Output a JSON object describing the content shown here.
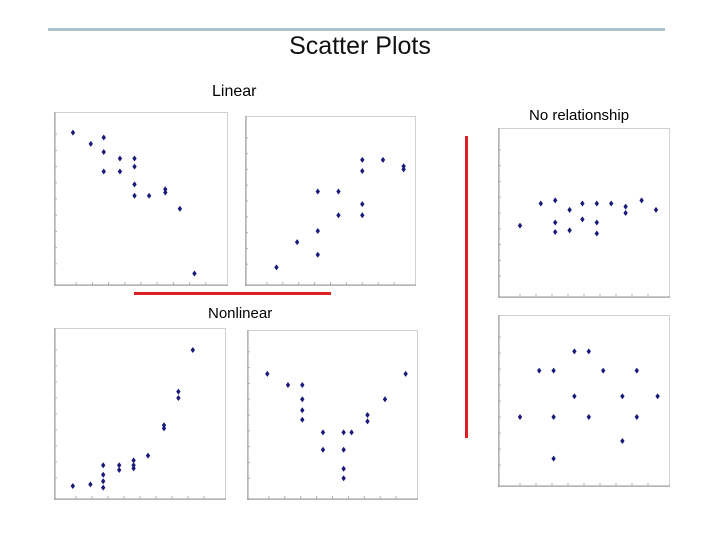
{
  "slide": {
    "title": "Scatter Plots",
    "label_linear": "Linear",
    "label_nonlinear": "Nonlinear",
    "label_no_relationship": "No relationship",
    "accent_color": "#e02020",
    "rule_color": "#a8c4cc",
    "marker_color": "#1a1a7a"
  },
  "chart_data": [
    {
      "id": "linear-negative",
      "type": "scatter",
      "title": "",
      "xlabel": "",
      "ylabel": "",
      "xlim": [
        0,
        10
      ],
      "ylim": [
        0,
        10
      ],
      "series": [
        {
          "points": [
            [
              0.8,
              9.1
            ],
            [
              1.9,
              8.4
            ],
            [
              2.7,
              8.8
            ],
            [
              2.7,
              7.9
            ],
            [
              2.7,
              6.7
            ],
            [
              3.7,
              7.5
            ],
            [
              3.7,
              6.7
            ],
            [
              4.6,
              7.5
            ],
            [
              4.6,
              7.0
            ],
            [
              4.6,
              5.9
            ],
            [
              4.6,
              5.2
            ],
            [
              5.5,
              5.2
            ],
            [
              6.5,
              5.6
            ],
            [
              6.5,
              5.4
            ],
            [
              7.4,
              4.4
            ],
            [
              8.3,
              0.4
            ]
          ]
        }
      ]
    },
    {
      "id": "linear-positive",
      "type": "scatter",
      "title": "",
      "xlabel": "",
      "ylabel": "",
      "xlim": [
        0,
        10
      ],
      "ylim": [
        0,
        10
      ],
      "series": [
        {
          "points": [
            [
              1.6,
              0.8
            ],
            [
              2.9,
              2.4
            ],
            [
              4.2,
              1.6
            ],
            [
              4.2,
              3.1
            ],
            [
              4.2,
              5.6
            ],
            [
              5.5,
              4.1
            ],
            [
              5.5,
              5.6
            ],
            [
              7.0,
              4.1
            ],
            [
              7.0,
              4.8
            ],
            [
              7.0,
              6.9
            ],
            [
              7.0,
              7.6
            ],
            [
              8.3,
              7.6
            ],
            [
              9.6,
              7.2
            ],
            [
              9.6,
              7.0
            ]
          ]
        }
      ]
    },
    {
      "id": "nonlinear-exponential",
      "type": "scatter",
      "title": "",
      "xlabel": "",
      "ylabel": "",
      "xlim": [
        0,
        10
      ],
      "ylim": [
        0,
        10
      ],
      "series": [
        {
          "points": [
            [
              0.8,
              0.5
            ],
            [
              1.9,
              0.6
            ],
            [
              2.7,
              1.8
            ],
            [
              2.7,
              1.2
            ],
            [
              2.7,
              0.8
            ],
            [
              2.7,
              0.4
            ],
            [
              3.7,
              1.8
            ],
            [
              3.7,
              1.5
            ],
            [
              4.6,
              2.1
            ],
            [
              4.6,
              1.8
            ],
            [
              4.6,
              1.6
            ],
            [
              5.5,
              2.4
            ],
            [
              6.5,
              4.1
            ],
            [
              6.5,
              4.3
            ],
            [
              7.4,
              6.0
            ],
            [
              7.4,
              6.4
            ],
            [
              8.3,
              9.0
            ]
          ]
        }
      ]
    },
    {
      "id": "nonlinear-quadratic",
      "type": "scatter",
      "title": "",
      "xlabel": "",
      "ylabel": "",
      "xlim": [
        0,
        10
      ],
      "ylim": [
        0,
        10
      ],
      "series": [
        {
          "points": [
            [
              0.9,
              7.6
            ],
            [
              2.2,
              6.9
            ],
            [
              3.1,
              6.9
            ],
            [
              3.1,
              6.0
            ],
            [
              3.1,
              5.3
            ],
            [
              3.1,
              4.7
            ],
            [
              4.4,
              3.9
            ],
            [
              4.4,
              2.8
            ],
            [
              5.7,
              3.9
            ],
            [
              5.7,
              2.8
            ],
            [
              5.7,
              1.6
            ],
            [
              5.7,
              1.0
            ],
            [
              6.2,
              3.9
            ],
            [
              7.2,
              5.0
            ],
            [
              7.2,
              4.6
            ],
            [
              8.3,
              6.0
            ],
            [
              9.6,
              7.6
            ]
          ]
        }
      ]
    },
    {
      "id": "no-relationship-1",
      "type": "scatter",
      "title": "",
      "xlabel": "",
      "ylabel": "",
      "xlim": [
        0,
        10
      ],
      "ylim": [
        0,
        10
      ],
      "series": [
        {
          "points": [
            [
              1.0,
              4.2
            ],
            [
              2.3,
              5.6
            ],
            [
              3.2,
              5.8
            ],
            [
              3.2,
              4.4
            ],
            [
              3.2,
              3.8
            ],
            [
              4.1,
              5.2
            ],
            [
              4.1,
              3.9
            ],
            [
              4.9,
              5.6
            ],
            [
              4.9,
              4.6
            ],
            [
              5.8,
              5.6
            ],
            [
              5.8,
              4.4
            ],
            [
              5.8,
              3.7
            ],
            [
              6.7,
              5.6
            ],
            [
              7.6,
              5.4
            ],
            [
              7.6,
              5.0
            ],
            [
              8.6,
              5.8
            ],
            [
              9.5,
              5.2
            ]
          ]
        }
      ]
    },
    {
      "id": "no-relationship-2",
      "type": "scatter",
      "title": "",
      "xlabel": "",
      "ylabel": "",
      "xlim": [
        0,
        10
      ],
      "ylim": [
        0,
        10
      ],
      "series": [
        {
          "points": [
            [
              1.0,
              4.0
            ],
            [
              2.2,
              6.9
            ],
            [
              3.1,
              6.9
            ],
            [
              3.1,
              4.0
            ],
            [
              3.1,
              1.4
            ],
            [
              4.4,
              8.1
            ],
            [
              4.4,
              5.3
            ],
            [
              5.3,
              8.1
            ],
            [
              5.3,
              4.0
            ],
            [
              6.2,
              6.9
            ],
            [
              7.4,
              5.3
            ],
            [
              7.4,
              2.5
            ],
            [
              8.3,
              6.9
            ],
            [
              8.3,
              4.0
            ],
            [
              9.6,
              5.3
            ]
          ]
        }
      ]
    }
  ]
}
